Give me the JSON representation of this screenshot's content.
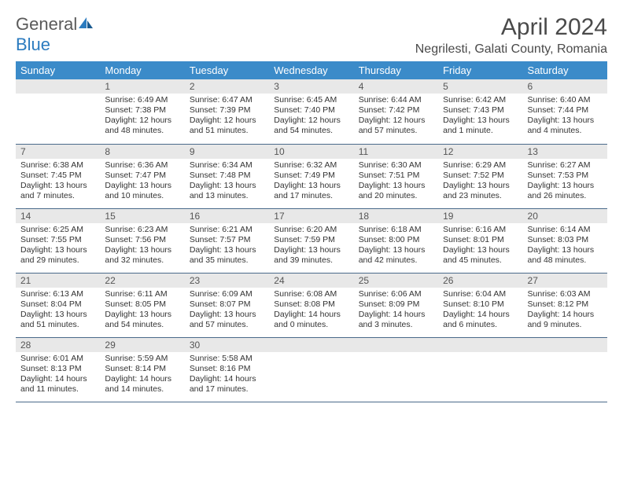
{
  "logo": {
    "general": "General",
    "blue": "Blue"
  },
  "title": "April 2024",
  "location": "Negrilesti, Galati County, Romania",
  "colors": {
    "header_bg": "#3b8bc9",
    "daynum_bg": "#e8e8e8",
    "row_border": "#4a6a8a",
    "text": "#333333"
  },
  "weekdays": [
    "Sunday",
    "Monday",
    "Tuesday",
    "Wednesday",
    "Thursday",
    "Friday",
    "Saturday"
  ],
  "weeks": [
    [
      null,
      {
        "n": "1",
        "sr": "6:49 AM",
        "ss": "7:38 PM",
        "dl": "12 hours and 48 minutes."
      },
      {
        "n": "2",
        "sr": "6:47 AM",
        "ss": "7:39 PM",
        "dl": "12 hours and 51 minutes."
      },
      {
        "n": "3",
        "sr": "6:45 AM",
        "ss": "7:40 PM",
        "dl": "12 hours and 54 minutes."
      },
      {
        "n": "4",
        "sr": "6:44 AM",
        "ss": "7:42 PM",
        "dl": "12 hours and 57 minutes."
      },
      {
        "n": "5",
        "sr": "6:42 AM",
        "ss": "7:43 PM",
        "dl": "13 hours and 1 minute."
      },
      {
        "n": "6",
        "sr": "6:40 AM",
        "ss": "7:44 PM",
        "dl": "13 hours and 4 minutes."
      }
    ],
    [
      {
        "n": "7",
        "sr": "6:38 AM",
        "ss": "7:45 PM",
        "dl": "13 hours and 7 minutes."
      },
      {
        "n": "8",
        "sr": "6:36 AM",
        "ss": "7:47 PM",
        "dl": "13 hours and 10 minutes."
      },
      {
        "n": "9",
        "sr": "6:34 AM",
        "ss": "7:48 PM",
        "dl": "13 hours and 13 minutes."
      },
      {
        "n": "10",
        "sr": "6:32 AM",
        "ss": "7:49 PM",
        "dl": "13 hours and 17 minutes."
      },
      {
        "n": "11",
        "sr": "6:30 AM",
        "ss": "7:51 PM",
        "dl": "13 hours and 20 minutes."
      },
      {
        "n": "12",
        "sr": "6:29 AM",
        "ss": "7:52 PM",
        "dl": "13 hours and 23 minutes."
      },
      {
        "n": "13",
        "sr": "6:27 AM",
        "ss": "7:53 PM",
        "dl": "13 hours and 26 minutes."
      }
    ],
    [
      {
        "n": "14",
        "sr": "6:25 AM",
        "ss": "7:55 PM",
        "dl": "13 hours and 29 minutes."
      },
      {
        "n": "15",
        "sr": "6:23 AM",
        "ss": "7:56 PM",
        "dl": "13 hours and 32 minutes."
      },
      {
        "n": "16",
        "sr": "6:21 AM",
        "ss": "7:57 PM",
        "dl": "13 hours and 35 minutes."
      },
      {
        "n": "17",
        "sr": "6:20 AM",
        "ss": "7:59 PM",
        "dl": "13 hours and 39 minutes."
      },
      {
        "n": "18",
        "sr": "6:18 AM",
        "ss": "8:00 PM",
        "dl": "13 hours and 42 minutes."
      },
      {
        "n": "19",
        "sr": "6:16 AM",
        "ss": "8:01 PM",
        "dl": "13 hours and 45 minutes."
      },
      {
        "n": "20",
        "sr": "6:14 AM",
        "ss": "8:03 PM",
        "dl": "13 hours and 48 minutes."
      }
    ],
    [
      {
        "n": "21",
        "sr": "6:13 AM",
        "ss": "8:04 PM",
        "dl": "13 hours and 51 minutes."
      },
      {
        "n": "22",
        "sr": "6:11 AM",
        "ss": "8:05 PM",
        "dl": "13 hours and 54 minutes."
      },
      {
        "n": "23",
        "sr": "6:09 AM",
        "ss": "8:07 PM",
        "dl": "13 hours and 57 minutes."
      },
      {
        "n": "24",
        "sr": "6:08 AM",
        "ss": "8:08 PM",
        "dl": "14 hours and 0 minutes."
      },
      {
        "n": "25",
        "sr": "6:06 AM",
        "ss": "8:09 PM",
        "dl": "14 hours and 3 minutes."
      },
      {
        "n": "26",
        "sr": "6:04 AM",
        "ss": "8:10 PM",
        "dl": "14 hours and 6 minutes."
      },
      {
        "n": "27",
        "sr": "6:03 AM",
        "ss": "8:12 PM",
        "dl": "14 hours and 9 minutes."
      }
    ],
    [
      {
        "n": "28",
        "sr": "6:01 AM",
        "ss": "8:13 PM",
        "dl": "14 hours and 11 minutes."
      },
      {
        "n": "29",
        "sr": "5:59 AM",
        "ss": "8:14 PM",
        "dl": "14 hours and 14 minutes."
      },
      {
        "n": "30",
        "sr": "5:58 AM",
        "ss": "8:16 PM",
        "dl": "14 hours and 17 minutes."
      },
      null,
      null,
      null,
      null
    ]
  ],
  "labels": {
    "sunrise": "Sunrise:",
    "sunset": "Sunset:",
    "daylight": "Daylight:"
  }
}
